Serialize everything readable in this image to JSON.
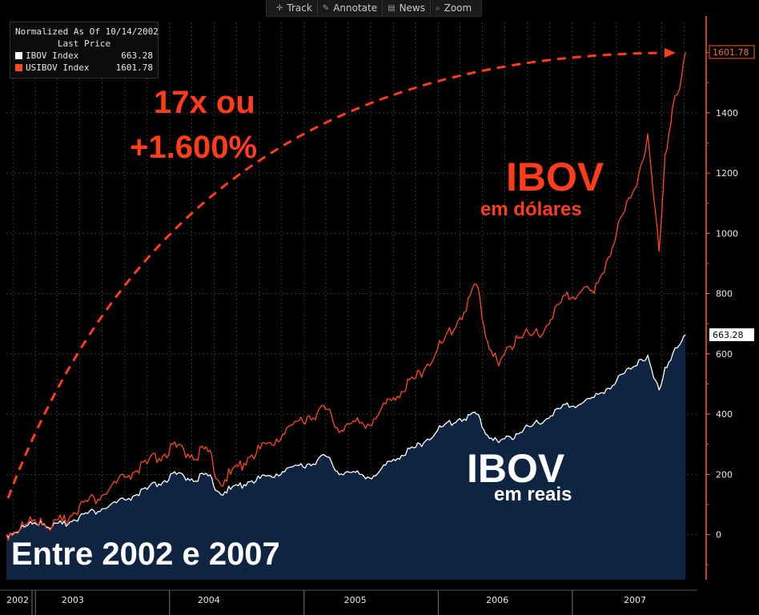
{
  "toolbar": {
    "items": [
      {
        "label": "Track",
        "icon": "crosshair-icon"
      },
      {
        "label": "Annotate",
        "icon": "pencil-icon"
      },
      {
        "label": "News",
        "icon": "newspaper-icon"
      },
      {
        "label": "Zoom",
        "icon": "magnifier-icon"
      }
    ]
  },
  "legend": {
    "header": "Normalized As Of 10/14/2002",
    "subheader": "Last Price",
    "entries": [
      {
        "name": "IBOV Index",
        "value": "663.28",
        "color": "#ffffff"
      },
      {
        "name": "USIBOV Index",
        "value": "1601.78",
        "color": "#ff4a1c"
      }
    ]
  },
  "annotations": {
    "gain_line1": "17x ou",
    "gain_line2": "+1.600%",
    "usd_title": "IBOV",
    "usd_sub": "em dólares",
    "brl_title": "IBOV",
    "brl_sub": "em reais",
    "period": "Entre 2002 e 2007"
  },
  "chart_data": {
    "type": "line",
    "y_axis": {
      "position": "right",
      "ylim": [
        -150,
        1700
      ],
      "ticks": [
        0,
        200,
        400,
        600,
        800,
        1000,
        1200,
        1400
      ]
    },
    "x_axis": {
      "ticks": [
        "2002",
        "2003",
        "2004",
        "2005",
        "2006",
        "2007"
      ]
    },
    "grid": true,
    "legend_position": "top-left",
    "last_value_labels": {
      "IBOV Index": "663.28",
      "USIBOV Index": "1601.78"
    },
    "series": [
      {
        "name": "IBOV Index",
        "color": "#ffffff",
        "fill": "#0e2440",
        "points": [
          [
            "2002-10-14",
            0
          ],
          [
            "2002-12-01",
            25
          ],
          [
            "2003-01-15",
            45
          ],
          [
            "2003-02-15",
            25
          ],
          [
            "2003-03-15",
            35
          ],
          [
            "2003-05-01",
            60
          ],
          [
            "2003-07-01",
            85
          ],
          [
            "2003-09-01",
            115
          ],
          [
            "2003-11-01",
            150
          ],
          [
            "2004-01-20",
            200
          ],
          [
            "2004-03-01",
            185
          ],
          [
            "2004-04-15",
            195
          ],
          [
            "2004-05-15",
            140
          ],
          [
            "2004-06-15",
            150
          ],
          [
            "2004-08-01",
            175
          ],
          [
            "2004-10-01",
            195
          ],
          [
            "2004-12-01",
            225
          ],
          [
            "2005-01-15",
            235
          ],
          [
            "2005-03-01",
            260
          ],
          [
            "2005-04-01",
            210
          ],
          [
            "2005-06-01",
            200
          ],
          [
            "2005-07-15",
            195
          ],
          [
            "2005-09-01",
            250
          ],
          [
            "2005-11-01",
            290
          ],
          [
            "2006-01-15",
            360
          ],
          [
            "2006-03-01",
            385
          ],
          [
            "2006-04-15",
            400
          ],
          [
            "2006-05-15",
            330
          ],
          [
            "2006-06-15",
            305
          ],
          [
            "2006-08-01",
            335
          ],
          [
            "2006-10-01",
            370
          ],
          [
            "2006-12-01",
            420
          ],
          [
            "2007-02-01",
            440
          ],
          [
            "2007-03-01",
            455
          ],
          [
            "2007-05-01",
            510
          ],
          [
            "2007-07-01",
            580
          ],
          [
            "2007-07-25",
            595
          ],
          [
            "2007-08-10",
            520
          ],
          [
            "2007-08-25",
            480
          ],
          [
            "2007-09-10",
            555
          ],
          [
            "2007-10-01",
            600
          ],
          [
            "2007-10-20",
            630
          ],
          [
            "2007-11-05",
            663.28
          ]
        ]
      },
      {
        "name": "USIBOV Index",
        "color": "#ff4a1c",
        "points": [
          [
            "2002-10-14",
            0
          ],
          [
            "2002-12-01",
            30
          ],
          [
            "2003-01-15",
            55
          ],
          [
            "2003-02-15",
            25
          ],
          [
            "2003-03-15",
            45
          ],
          [
            "2003-05-01",
            95
          ],
          [
            "2003-07-01",
            130
          ],
          [
            "2003-09-01",
            190
          ],
          [
            "2003-11-01",
            235
          ],
          [
            "2004-01-20",
            290
          ],
          [
            "2004-03-01",
            265
          ],
          [
            "2004-04-15",
            275
          ],
          [
            "2004-05-15",
            175
          ],
          [
            "2004-06-15",
            200
          ],
          [
            "2004-08-01",
            255
          ],
          [
            "2004-10-01",
            305
          ],
          [
            "2004-12-01",
            365
          ],
          [
            "2005-01-15",
            395
          ],
          [
            "2005-03-01",
            415
          ],
          [
            "2005-04-01",
            355
          ],
          [
            "2005-06-01",
            370
          ],
          [
            "2005-07-15",
            385
          ],
          [
            "2005-09-01",
            455
          ],
          [
            "2005-11-01",
            520
          ],
          [
            "2006-01-15",
            640
          ],
          [
            "2006-03-01",
            720
          ],
          [
            "2006-04-15",
            830
          ],
          [
            "2006-05-15",
            640
          ],
          [
            "2006-06-15",
            560
          ],
          [
            "2006-08-01",
            660
          ],
          [
            "2006-10-01",
            660
          ],
          [
            "2006-12-01",
            770
          ],
          [
            "2007-02-01",
            820
          ],
          [
            "2007-03-01",
            800
          ],
          [
            "2007-05-01",
            1000
          ],
          [
            "2007-07-01",
            1200
          ],
          [
            "2007-07-25",
            1330
          ],
          [
            "2007-08-10",
            1120
          ],
          [
            "2007-08-25",
            940
          ],
          [
            "2007-09-10",
            1260
          ],
          [
            "2007-10-01",
            1420
          ],
          [
            "2007-10-20",
            1480
          ],
          [
            "2007-11-05",
            1601.78
          ]
        ]
      }
    ]
  }
}
